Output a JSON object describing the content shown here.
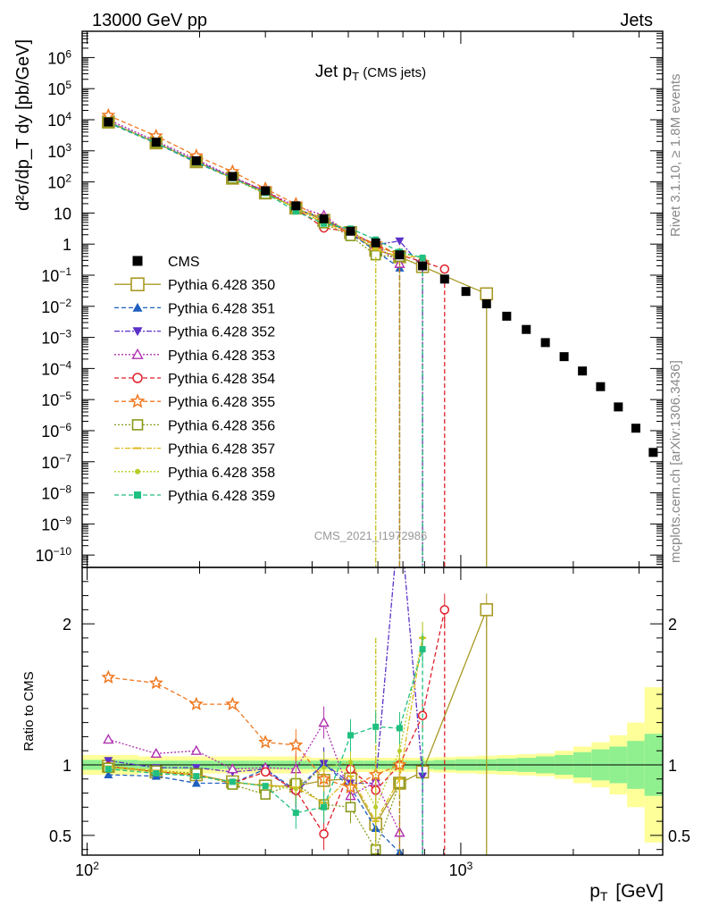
{
  "header": {
    "left": "13000 GeV pp",
    "right": "Jets"
  },
  "side_labels": {
    "top": "Rivet 3.1.10, ≥ 1.8M events",
    "bottom": "mcplots.cern.ch [arXiv:1306.3436]"
  },
  "chart_data": {
    "type": "scatter",
    "title": "Jet p_T (CMS jets)",
    "watermark": "CMS_2021_I1972986",
    "xlabel": "p_T [GeV]",
    "ylabel": "d²σ/dp_T dy [pb/GeV]",
    "ratio_ylabel": "Ratio to CMS",
    "x_log": true,
    "y_log": true,
    "xlim": [
      97,
      3470
    ],
    "ylim": [
      4e-11,
      7000000.0
    ],
    "ratio_ylim": [
      0.36,
      2.4
    ],
    "x_ticks": [
      {
        "v": 100,
        "label": "10",
        "exp": "2"
      },
      {
        "v": 1000,
        "label": "10",
        "exp": "3"
      }
    ],
    "y_ticks": [
      {
        "v": 1000000.0,
        "label": "10",
        "exp": "6"
      },
      {
        "v": 100000.0,
        "label": "10",
        "exp": "5"
      },
      {
        "v": 10000.0,
        "label": "10",
        "exp": "4"
      },
      {
        "v": 1000.0,
        "label": "10",
        "exp": "3"
      },
      {
        "v": 100.0,
        "label": "10",
        "exp": "2"
      },
      {
        "v": 10,
        "label": "10",
        "exp": ""
      },
      {
        "v": 1,
        "label": "1",
        "exp": ""
      },
      {
        "v": 0.1,
        "label": "10",
        "exp": "−1"
      },
      {
        "v": 0.01,
        "label": "10",
        "exp": "−2"
      },
      {
        "v": 0.001,
        "label": "10",
        "exp": "−3"
      },
      {
        "v": 0.0001,
        "label": "10",
        "exp": "−4"
      },
      {
        "v": 1e-05,
        "label": "10",
        "exp": "−5"
      },
      {
        "v": 1e-06,
        "label": "10",
        "exp": "−6"
      },
      {
        "v": 1e-07,
        "label": "10",
        "exp": "−7"
      },
      {
        "v": 1e-08,
        "label": "10",
        "exp": "−8"
      },
      {
        "v": 1e-09,
        "label": "10",
        "exp": "−9"
      },
      {
        "v": 1e-10,
        "label": "10",
        "exp": "−10"
      }
    ],
    "ratio_ticks": [
      {
        "v": 0.5,
        "label": "0.5"
      },
      {
        "v": 1,
        "label": "1"
      },
      {
        "v": 2,
        "label": "2"
      }
    ],
    "legend_position": "left-center",
    "data": {
      "name": "CMS",
      "x": [
        114,
        153,
        196,
        245,
        300,
        362,
        430,
        507,
        592,
        686,
        790,
        905,
        1032,
        1172,
        1327,
        1497,
        1684,
        1890,
        2116,
        2366,
        2640,
        2941,
        3273
      ],
      "y": [
        8500,
        1900,
        480,
        150,
        52,
        17,
        6.5,
        2.6,
        1.1,
        0.45,
        0.2,
        0.075,
        0.03,
        0.012,
        0.0048,
        0.0018,
        0.00068,
        0.00024,
        8.3e-05,
        2.6e-05,
        5.8e-06,
        1.2e-06,
        2e-07
      ]
    },
    "band_edges": [
      97,
      137,
      175,
      220,
      272,
      330,
      395,
      468,
      550,
      638,
      737,
      846,
      967,
      1101,
      1248,
      1410,
      1588,
      1784,
      2000,
      2238,
      2500,
      2787,
      3103,
      3470
    ],
    "band_inner": [
      0.035,
      0.03,
      0.03,
      0.03,
      0.03,
      0.03,
      0.03,
      0.03,
      0.03,
      0.03,
      0.03,
      0.035,
      0.04,
      0.04,
      0.045,
      0.05,
      0.06,
      0.07,
      0.09,
      0.11,
      0.13,
      0.17,
      0.22
    ],
    "band_outer": [
      0.07,
      0.06,
      0.06,
      0.06,
      0.06,
      0.06,
      0.05,
      0.05,
      0.05,
      0.05,
      0.05,
      0.055,
      0.06,
      0.065,
      0.07,
      0.075,
      0.08,
      0.1,
      0.13,
      0.16,
      0.21,
      0.3,
      0.55
    ],
    "series": [
      {
        "name": "Pythia 6.428 350",
        "color": "#a89a25",
        "dash": "",
        "marker": "square-open",
        "msize": 6.5,
        "ratio": [
          0.99,
          0.95,
          0.93,
          0.88,
          0.85,
          0.85,
          0.89,
          0.9,
          0.58,
          0.87,
          0.95,
          2.1
        ],
        "ratio_x_last": 1172,
        "drop_x": 1172
      },
      {
        "name": "Pythia 6.428 351",
        "color": "#1f5fbf",
        "dash": "5,3",
        "marker": "tri-up",
        "msize": 5,
        "ratio": [
          0.93,
          0.92,
          0.87,
          0.87,
          0.97,
          0.82,
          1.01,
          0.84,
          0.55,
          0.38
        ],
        "drop_x": 686
      },
      {
        "name": "Pythia 6.428 352",
        "color": "#5b30c8",
        "dash": "6,2,2,2",
        "marker": "tri-down",
        "msize": 5,
        "ratio": [
          1.03,
          0.98,
          0.98,
          0.95,
          0.97,
          0.8,
          1.01,
          0.87,
          0.87,
          2.8,
          0.92
        ],
        "drop_x": 790
      },
      {
        "name": "Pythia 6.428 353",
        "color": "#b030b0",
        "dash": "2,2",
        "marker": "tri-up-open",
        "msize": 5,
        "ratio": [
          1.18,
          1.08,
          1.1,
          0.97,
          0.98,
          0.97,
          1.3,
          0.78,
          0.88,
          0.52
        ],
        "drop_x": 790
      },
      {
        "name": "Pythia 6.428 354",
        "color": "#e0202a",
        "dash": "5,3",
        "marker": "circle-open",
        "msize": 4.5,
        "ratio": [
          0.99,
          0.95,
          0.93,
          0.87,
          0.95,
          0.82,
          0.51,
          0.97,
          0.82,
          1.0,
          1.35,
          2.1
        ],
        "drop_x": 905
      },
      {
        "name": "Pythia 6.428 355",
        "color": "#f07820",
        "dash": "5,3",
        "marker": "star",
        "msize": 6.5,
        "ratio": [
          1.62,
          1.58,
          1.43,
          1.43,
          1.16,
          1.14,
          0.9,
          0.84,
          0.93,
          1.0
        ],
        "drop_x": 686
      },
      {
        "name": "Pythia 6.428 356",
        "color": "#8a9a1c",
        "dash": "2,2",
        "marker": "square-open",
        "msize": 5,
        "ratio": [
          0.98,
          0.96,
          0.94,
          0.86,
          0.79,
          0.87,
          0.72,
          0.7,
          0.4,
          0.87
        ],
        "drop_x": 686
      },
      {
        "name": "Pythia 6.428 357",
        "color": "#e0b818",
        "dash": "6,2,2,2",
        "marker": "tick",
        "msize": 4,
        "ratio": [
          0.99,
          0.96,
          0.93,
          0.87,
          0.86,
          0.84,
          0.73,
          0.92,
          0.6,
          0.9,
          1.9
        ],
        "drop_x": 592
      },
      {
        "name": "Pythia 6.428 358",
        "color": "#b8cc28",
        "dash": "2,2",
        "marker": "dot",
        "msize": 2.5,
        "ratio": [
          0.98,
          0.95,
          0.92,
          0.88,
          0.85,
          0.83,
          0.98,
          1.02,
          0.7,
          1.1,
          1.9
        ],
        "drop_x": 592
      },
      {
        "name": "Pythia 6.428 359",
        "color": "#20c080",
        "dash": "5,3",
        "marker": "square",
        "msize": 3.5,
        "ratio": [
          0.97,
          0.94,
          0.92,
          0.88,
          0.85,
          0.66,
          0.7,
          1.21,
          1.27,
          1.26,
          1.82
        ],
        "drop_x": 790
      }
    ]
  }
}
